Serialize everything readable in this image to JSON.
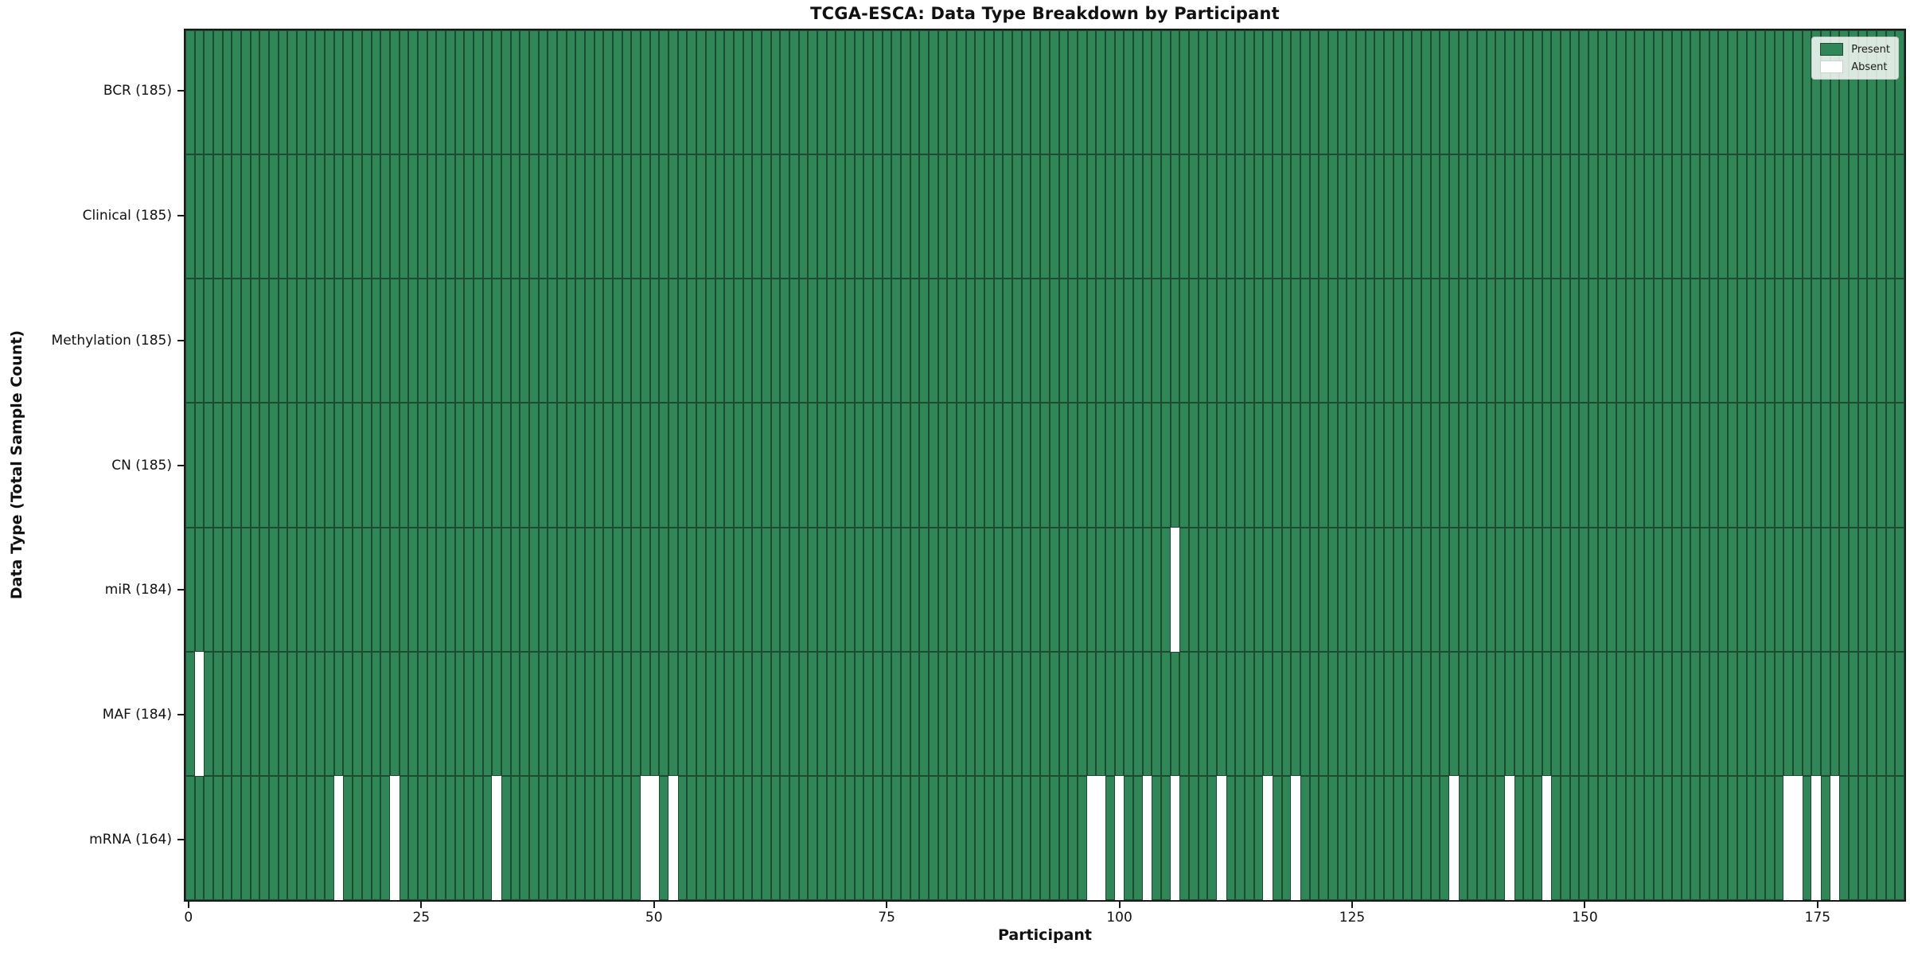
{
  "chart_data": {
    "type": "heatmap",
    "title": "TCGA-ESCA: Data Type Breakdown by Participant",
    "xlabel": "Participant",
    "ylabel": "Data Type (Total Sample Count)",
    "n_participants": 185,
    "x_ticks": [
      0,
      25,
      50,
      75,
      100,
      125,
      150,
      175
    ],
    "grid": "cell-edges",
    "legend_position": "top-right",
    "colors": {
      "present": "#2f8757",
      "absent": "#ffffff",
      "cell_edge": "#1f4a31",
      "spine": "#1a1a1a"
    },
    "legend": {
      "entries": [
        {
          "label": "Present",
          "color": "#2f8757"
        },
        {
          "label": "Absent",
          "color": "#ffffff"
        }
      ]
    },
    "rows": [
      {
        "key": "bcr",
        "label": "BCR (185)",
        "count": 185,
        "absent": []
      },
      {
        "key": "clinical",
        "label": "Clinical (185)",
        "count": 185,
        "absent": []
      },
      {
        "key": "methylation",
        "label": "Methylation (185)",
        "count": 185,
        "absent": []
      },
      {
        "key": "cn",
        "label": "CN (185)",
        "count": 185,
        "absent": []
      },
      {
        "key": "mir",
        "label": "miR (184)",
        "count": 184,
        "absent": [
          106
        ]
      },
      {
        "key": "maf",
        "label": "MAF (184)",
        "count": 184,
        "absent": [
          1
        ]
      },
      {
        "key": "mrna",
        "label": "mRNA (164)",
        "count": 164,
        "absent": [
          16,
          22,
          33,
          49,
          50,
          52,
          97,
          98,
          100,
          103,
          106,
          111,
          116,
          119,
          136,
          142,
          146,
          172,
          173,
          175,
          177
        ]
      }
    ]
  }
}
